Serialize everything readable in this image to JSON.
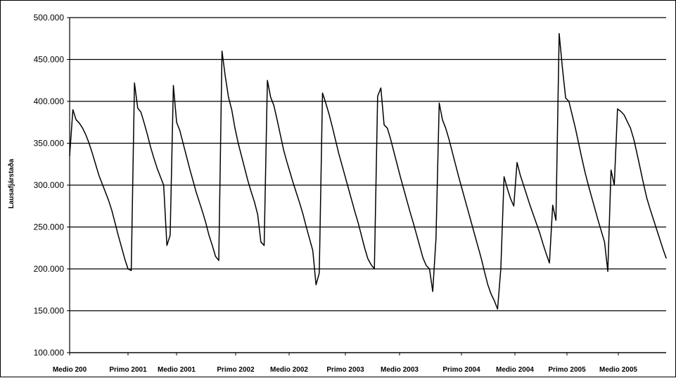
{
  "chart_data": {
    "type": "line",
    "title": "",
    "xlabel": "",
    "ylabel": "Lausafjárstaða",
    "ylim": [
      100000,
      500000
    ],
    "yticks": [
      100000,
      150000,
      200000,
      250000,
      300000,
      350000,
      400000,
      450000,
      500000
    ],
    "ytick_labels": [
      "100.000",
      "150.000",
      "200.000",
      "250.000",
      "300.000",
      "350.000",
      "400.000",
      "450.000",
      "500.000"
    ],
    "x_tick_labels": [
      "Medio 200",
      "Primo 2001",
      "Medio 2001",
      "Primo 2002",
      "Medio 2002",
      "Primo 2003",
      "Medio 2003",
      "Primo 2004",
      "Medio 2004",
      "Primo 2005",
      "Medio 2005"
    ],
    "grid": true,
    "legend": false,
    "line_color": "#000000",
    "series": [
      {
        "values": [
          335000,
          390000,
          378000,
          374000,
          368000,
          360000,
          350000,
          338000,
          325000,
          312000,
          302000,
          292000,
          282000,
          270000,
          255000,
          240000,
          226000,
          212000,
          200000,
          198000,
          422000,
          392000,
          387000,
          374000,
          360000,
          345000,
          332000,
          320000,
          310000,
          300000,
          228000,
          240000,
          419000,
          375000,
          365000,
          350000,
          335000,
          320000,
          306000,
          292000,
          280000,
          268000,
          255000,
          240000,
          228000,
          215000,
          210000,
          460000,
          430000,
          405000,
          390000,
          368000,
          350000,
          335000,
          320000,
          305000,
          292000,
          280000,
          265000,
          232000,
          228000,
          425000,
          405000,
          395000,
          378000,
          360000,
          342000,
          328000,
          315000,
          302000,
          290000,
          278000,
          265000,
          250000,
          236000,
          222000,
          181000,
          195000,
          410000,
          398000,
          385000,
          370000,
          354000,
          338000,
          324000,
          310000,
          296000,
          282000,
          268000,
          255000,
          240000,
          225000,
          212000,
          205000,
          200000,
          406000,
          416000,
          372000,
          368000,
          355000,
          340000,
          325000,
          310000,
          296000,
          282000,
          268000,
          255000,
          241000,
          227000,
          213000,
          204000,
          200000,
          173000,
          236000,
          398000,
          378000,
          368000,
          355000,
          340000,
          325000,
          310000,
          296000,
          282000,
          268000,
          254000,
          240000,
          226000,
          212000,
          196000,
          181000,
          170000,
          162000,
          152000,
          200000,
          310000,
          296000,
          284000,
          275000,
          327000,
          312000,
          300000,
          288000,
          276000,
          265000,
          254000,
          243000,
          230000,
          218000,
          207000,
          276000,
          258000,
          481000,
          440000,
          404000,
          400000,
          384000,
          368000,
          350000,
          332000,
          315000,
          300000,
          286000,
          272000,
          258000,
          245000,
          232000,
          197000,
          318000,
          300000,
          391000,
          388000,
          384000,
          376000,
          368000,
          355000,
          338000,
          320000,
          302000,
          285000,
          272000,
          260000,
          248000,
          236000,
          224000,
          213000
        ]
      }
    ]
  }
}
